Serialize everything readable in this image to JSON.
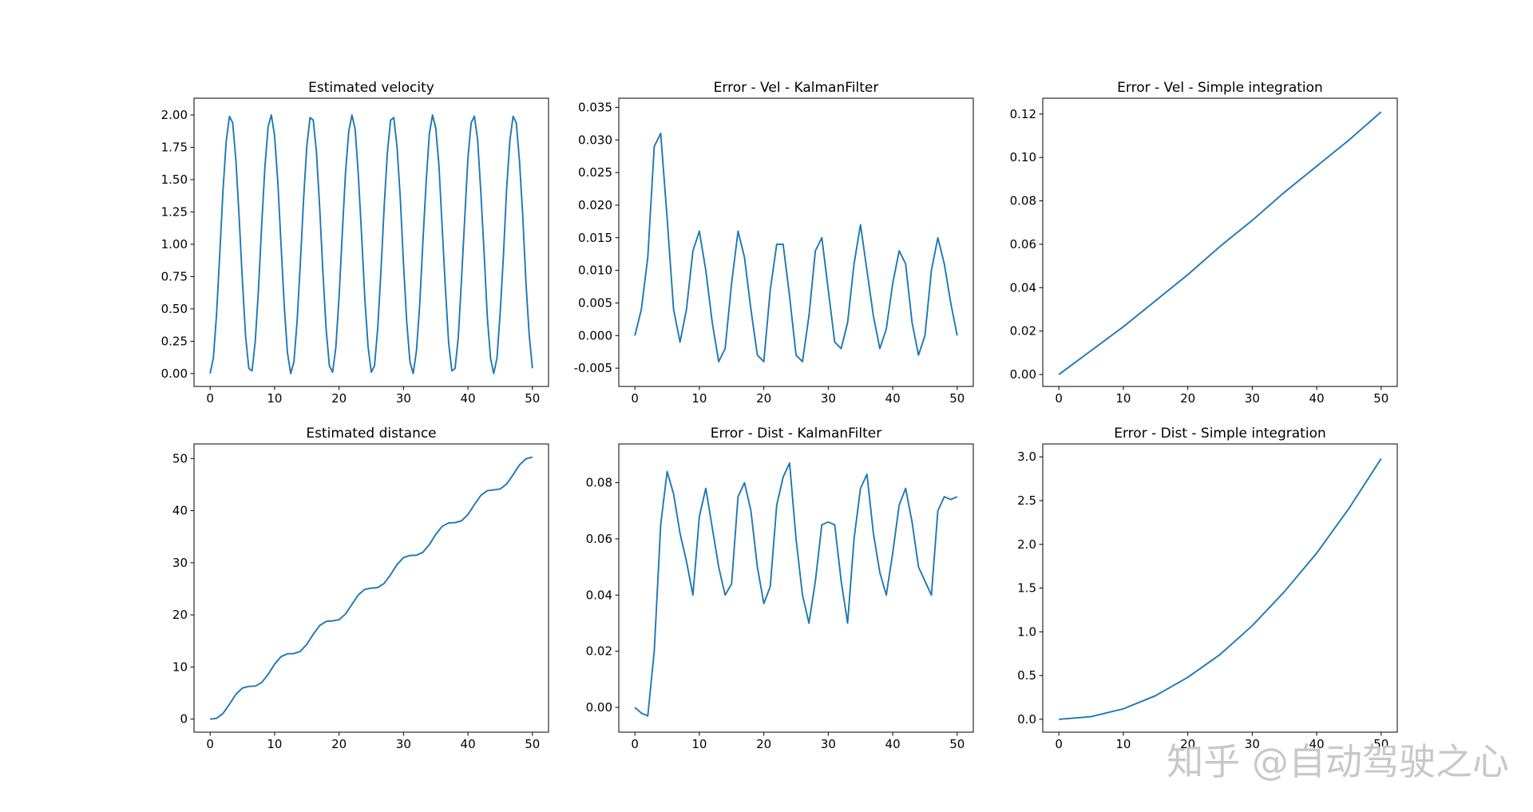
{
  "watermark": "知乎 @自动驾驶之心",
  "chart_data": [
    {
      "type": "line",
      "title": "Estimated velocity",
      "color": "#1f77b4",
      "x": [
        0,
        0.5,
        1,
        1.5,
        2,
        2.5,
        3,
        3.5,
        4,
        4.5,
        5,
        5.5,
        6,
        6.5,
        7,
        7.5,
        8,
        8.5,
        9,
        9.5,
        10,
        10.5,
        11,
        11.5,
        12,
        12.5,
        13,
        13.5,
        14,
        14.5,
        15,
        15.5,
        16,
        16.5,
        17,
        17.5,
        18,
        18.5,
        19,
        19.5,
        20,
        20.5,
        21,
        21.5,
        22,
        22.5,
        23,
        23.5,
        24,
        24.5,
        25,
        25.5,
        26,
        26.5,
        27,
        27.5,
        28,
        28.5,
        29,
        29.5,
        30,
        30.5,
        31,
        31.5,
        32,
        32.5,
        33,
        33.5,
        34,
        34.5,
        35,
        35.5,
        36,
        36.5,
        37,
        37.5,
        38,
        38.5,
        39,
        39.5,
        40,
        40.5,
        41,
        41.5,
        42,
        42.5,
        43,
        43.5,
        44,
        44.5,
        45,
        45.5,
        46,
        46.5,
        47,
        47.5,
        48,
        48.5,
        49,
        49.5,
        50
      ],
      "values": [
        0,
        0.12,
        0.46,
        0.93,
        1.42,
        1.8,
        1.99,
        1.94,
        1.65,
        1.21,
        0.72,
        0.29,
        0.04,
        0.02,
        0.25,
        0.65,
        1.15,
        1.6,
        1.91,
        2.0,
        1.84,
        1.48,
        1.0,
        0.52,
        0.16,
        0.0,
        0.09,
        0.41,
        0.86,
        1.35,
        1.76,
        1.98,
        1.96,
        1.71,
        1.28,
        0.78,
        0.34,
        0.06,
        0.01,
        0.2,
        0.59,
        1.08,
        1.55,
        1.87,
        2.0,
        1.89,
        1.53,
        1.07,
        0.58,
        0.21,
        0.01,
        0.06,
        0.35,
        0.79,
        1.29,
        1.71,
        1.96,
        1.98,
        1.75,
        1.36,
        0.85,
        0.4,
        0.09,
        0.0,
        0.17,
        0.52,
        1.01,
        1.47,
        1.85,
        2.0,
        1.9,
        1.61,
        1.13,
        0.66,
        0.24,
        0.02,
        0.04,
        0.28,
        0.73,
        1.2,
        1.67,
        1.94,
        1.99,
        1.81,
        1.4,
        0.94,
        0.44,
        0.12,
        0.0,
        0.12,
        0.47,
        0.91,
        1.43,
        1.8,
        1.99,
        1.94,
        1.64,
        1.22,
        0.7,
        0.3,
        0.04
      ],
      "xlim": [
        -2.5,
        52.5
      ],
      "xticks": [
        0,
        10,
        20,
        30,
        40,
        50
      ],
      "ylim": [
        -0.1,
        2.13
      ],
      "yticks": [
        {
          "value": 0,
          "label": "0.00"
        },
        {
          "value": 0.25,
          "label": "0.25"
        },
        {
          "value": 0.5,
          "label": "0.50"
        },
        {
          "value": 0.75,
          "label": "0.75"
        },
        {
          "value": 1,
          "label": "1.00"
        },
        {
          "value": 1.25,
          "label": "1.25"
        },
        {
          "value": 1.5,
          "label": "1.50"
        },
        {
          "value": 1.75,
          "label": "1.75"
        },
        {
          "value": 2,
          "label": "2.00"
        }
      ]
    },
    {
      "type": "line",
      "title": "Error - Vel - KalmanFilter",
      "color": "#1f77b4",
      "x": [
        0,
        1,
        2,
        3,
        4,
        5,
        6,
        7,
        8,
        9,
        10,
        11,
        12,
        13,
        14,
        15,
        16,
        17,
        18,
        19,
        20,
        21,
        22,
        23,
        24,
        25,
        26,
        27,
        28,
        29,
        30,
        31,
        32,
        33,
        34,
        35,
        36,
        37,
        38,
        39,
        40,
        41,
        42,
        43,
        44,
        45,
        46,
        47,
        48,
        49,
        50
      ],
      "values": [
        0,
        0.004,
        0.012,
        0.029,
        0.031,
        0.018,
        0.004,
        -0.001,
        0.004,
        0.013,
        0.016,
        0.01,
        0.002,
        -0.004,
        -0.002,
        0.008,
        0.016,
        0.012,
        0.004,
        -0.003,
        -0.004,
        0.007,
        0.014,
        0.014,
        0.006,
        -0.003,
        -0.004,
        0.003,
        0.013,
        0.015,
        0.007,
        -0.001,
        -0.002,
        0.002,
        0.011,
        0.017,
        0.01,
        0.003,
        -0.002,
        0.001,
        0.008,
        0.013,
        0.011,
        0.002,
        -0.003,
        0.0,
        0.01,
        0.015,
        0.011,
        0.005,
        0.0
      ],
      "xlim": [
        -2.5,
        52.5
      ],
      "xticks": [
        0,
        10,
        20,
        30,
        40,
        50
      ],
      "ylim": [
        -0.0078,
        0.0364
      ],
      "yticks": [
        {
          "value": -0.005,
          "label": "-0.005"
        },
        {
          "value": 0,
          "label": "0.000"
        },
        {
          "value": 0.005,
          "label": "0.005"
        },
        {
          "value": 0.01,
          "label": "0.010"
        },
        {
          "value": 0.015,
          "label": "0.015"
        },
        {
          "value": 0.02,
          "label": "0.020"
        },
        {
          "value": 0.025,
          "label": "0.025"
        },
        {
          "value": 0.03,
          "label": "0.030"
        },
        {
          "value": 0.035,
          "label": "0.035"
        }
      ]
    },
    {
      "type": "line",
      "title": "Error - Vel - Simple integration",
      "color": "#1f77b4",
      "x": [
        0,
        5,
        10,
        15,
        20,
        25,
        30,
        35,
        40,
        45,
        50
      ],
      "values": [
        0,
        0.011,
        0.022,
        0.034,
        0.046,
        0.059,
        0.071,
        0.084,
        0.096,
        0.108,
        0.121
      ],
      "xlim": [
        -2.5,
        52.5
      ],
      "xticks": [
        0,
        10,
        20,
        30,
        40,
        50
      ],
      "ylim": [
        -0.0055,
        0.1273
      ],
      "yticks": [
        {
          "value": 0,
          "label": "0.00"
        },
        {
          "value": 0.02,
          "label": "0.02"
        },
        {
          "value": 0.04,
          "label": "0.04"
        },
        {
          "value": 0.06,
          "label": "0.06"
        },
        {
          "value": 0.08,
          "label": "0.08"
        },
        {
          "value": 0.1,
          "label": "0.10"
        },
        {
          "value": 0.12,
          "label": "0.12"
        }
      ]
    },
    {
      "type": "line",
      "title": "Estimated distance",
      "color": "#1f77b4",
      "x": [
        0,
        1,
        2,
        3,
        4,
        5,
        6,
        7,
        8,
        9,
        10,
        11,
        12,
        13,
        14,
        15,
        16,
        17,
        18,
        19,
        20,
        21,
        22,
        23,
        24,
        25,
        26,
        27,
        28,
        29,
        30,
        31,
        32,
        33,
        34,
        35,
        36,
        37,
        38,
        39,
        40,
        41,
        42,
        43,
        44,
        45,
        46,
        47,
        48,
        49,
        50
      ],
      "values": [
        0,
        0.16,
        1.09,
        2.86,
        4.76,
        5.96,
        6.28,
        6.34,
        7.01,
        8.59,
        10.54,
        12.0,
        12.54,
        12.58,
        13.01,
        14.35,
        16.29,
        17.96,
        18.75,
        18.85,
        19.09,
        20.16,
        22.01,
        23.85,
        24.91,
        25.13,
        25.24,
        26.04,
        27.73,
        29.66,
        30.99,
        31.4,
        31.45,
        32.0,
        33.47,
        35.43,
        36.99,
        37.64,
        37.7,
        38.04,
        39.25,
        41.16,
        42.92,
        43.83,
        43.98,
        44.15,
        45.1,
        46.88,
        48.77,
        49.95,
        50.26
      ],
      "xlim": [
        -2.5,
        52.5
      ],
      "xticks": [
        0,
        10,
        20,
        30,
        40,
        50
      ],
      "ylim": [
        -2.5,
        52.8
      ],
      "yticks": [
        0,
        10,
        20,
        30,
        40,
        50
      ]
    },
    {
      "type": "line",
      "title": "Error - Dist - KalmanFilter",
      "color": "#1f77b4",
      "x": [
        0,
        1,
        2,
        3,
        4,
        5,
        6,
        7,
        8,
        9,
        10,
        11,
        12,
        13,
        14,
        15,
        16,
        17,
        18,
        19,
        20,
        21,
        22,
        23,
        24,
        25,
        26,
        27,
        28,
        29,
        30,
        31,
        32,
        33,
        34,
        35,
        36,
        37,
        38,
        39,
        40,
        41,
        42,
        43,
        44,
        45,
        46,
        47,
        48,
        49,
        50
      ],
      "values": [
        0,
        -0.002,
        -0.003,
        0.02,
        0.065,
        0.084,
        0.076,
        0.062,
        0.052,
        0.04,
        0.068,
        0.078,
        0.064,
        0.05,
        0.04,
        0.044,
        0.075,
        0.08,
        0.07,
        0.05,
        0.037,
        0.043,
        0.072,
        0.082,
        0.087,
        0.06,
        0.04,
        0.03,
        0.045,
        0.065,
        0.066,
        0.065,
        0.045,
        0.03,
        0.06,
        0.078,
        0.083,
        0.062,
        0.048,
        0.04,
        0.055,
        0.072,
        0.078,
        0.066,
        0.05,
        0.045,
        0.04,
        0.07,
        0.075,
        0.074,
        0.075
      ],
      "xlim": [
        -2.5,
        52.5
      ],
      "xticks": [
        0,
        10,
        20,
        30,
        40,
        50
      ],
      "ylim": [
        -0.0088,
        0.0938
      ],
      "yticks": [
        {
          "value": 0,
          "label": "0.00"
        },
        {
          "value": 0.02,
          "label": "0.02"
        },
        {
          "value": 0.04,
          "label": "0.04"
        },
        {
          "value": 0.06,
          "label": "0.06"
        },
        {
          "value": 0.08,
          "label": "0.08"
        }
      ]
    },
    {
      "type": "line",
      "title": "Error - Dist - Simple integration",
      "color": "#1f77b4",
      "x": [
        0,
        5,
        10,
        15,
        20,
        25,
        30,
        35,
        40,
        45,
        50
      ],
      "values": [
        0,
        0.03,
        0.12,
        0.27,
        0.48,
        0.74,
        1.07,
        1.46,
        1.9,
        2.41,
        2.98
      ],
      "xlim": [
        -2.5,
        52.5
      ],
      "xticks": [
        0,
        10,
        20,
        30,
        40,
        50
      ],
      "ylim": [
        -0.147,
        3.148
      ],
      "yticks": [
        {
          "value": 0,
          "label": "0.0"
        },
        {
          "value": 0.5,
          "label": "0.5"
        },
        {
          "value": 1,
          "label": "1.0"
        },
        {
          "value": 1.5,
          "label": "1.5"
        },
        {
          "value": 2,
          "label": "2.0"
        },
        {
          "value": 2.5,
          "label": "2.5"
        },
        {
          "value": 3,
          "label": "3.0"
        }
      ]
    }
  ]
}
